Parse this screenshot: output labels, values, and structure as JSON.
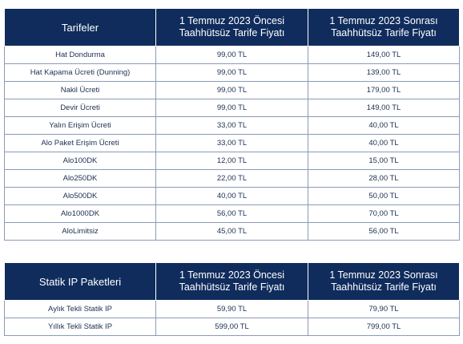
{
  "table1": {
    "headers": [
      {
        "line1": "Tarifeler",
        "line2": ""
      },
      {
        "line1": "1 Temmuz 2023 Öncesi",
        "line2": "Taahhütsüz Tarife Fiyatı"
      },
      {
        "line1": "1 Temmuz 2023 Sonrası",
        "line2": "Taahhütsüz Tarife Fiyatı"
      }
    ],
    "rows": [
      [
        "Hat Dondurma",
        "99,00 TL",
        "149,00 TL"
      ],
      [
        "Hat Kapama Ücreti (Dunning)",
        "99,00 TL",
        "139,00 TL"
      ],
      [
        "Nakil Ücreti",
        "99,00 TL",
        "179,00 TL"
      ],
      [
        "Devir Ücreti",
        "99,00 TL",
        "149,00 TL"
      ],
      [
        "Yalın Erişim Ücreti",
        "33,00 TL",
        "40,00 TL"
      ],
      [
        "Alo Paket Erişim Ücreti",
        "33,00 TL",
        "40,00 TL"
      ],
      [
        "Alo100DK",
        "12,00 TL",
        "15,00 TL"
      ],
      [
        "Alo250DK",
        "22,00 TL",
        "28,00 TL"
      ],
      [
        "Alo500DK",
        "40,00 TL",
        "50,00 TL"
      ],
      [
        "Alo1000DK",
        "56,00 TL",
        "70,00 TL"
      ],
      [
        "AloLimitsiz",
        "45,00 TL",
        "56,00 TL"
      ]
    ]
  },
  "table2": {
    "headers": [
      {
        "line1": "Statik IP Paketleri",
        "line2": ""
      },
      {
        "line1": "1 Temmuz 2023 Öncesi",
        "line2": "Taahhütsüz Tarife Fiyatı"
      },
      {
        "line1": "1 Temmuz 2023 Sonrası",
        "line2": "Taahhütsüz Tarife Fiyatı"
      }
    ],
    "rows": [
      [
        "Aylık Tekli Statik IP",
        "59,90 TL",
        "79,90 TL"
      ],
      [
        "Yıllık Tekli Statik IP",
        "599,00 TL",
        "799,00 TL"
      ]
    ]
  },
  "colors": {
    "header_bg": "#0f2c5c",
    "header_text": "#ffffff",
    "cell_text": "#1d2f52",
    "border": "#8a9bb5"
  }
}
